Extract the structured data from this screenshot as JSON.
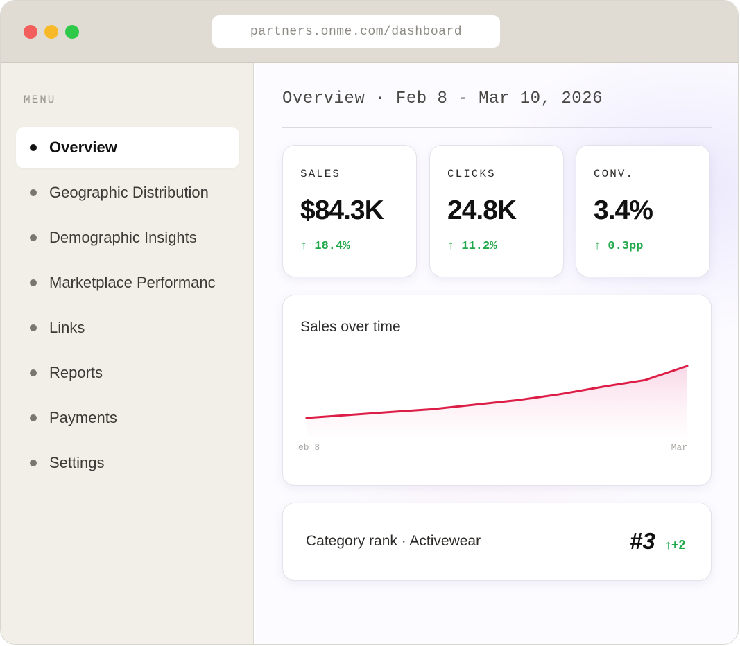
{
  "browser": {
    "url": "partners.onme.com/dashboard"
  },
  "sidebar": {
    "menu_title": "MENU",
    "items": [
      {
        "label": "Overview",
        "active": true
      },
      {
        "label": "Geographic Distribution",
        "active": false
      },
      {
        "label": "Demographic Insights",
        "active": false
      },
      {
        "label": "Marketplace Performanc",
        "active": false
      },
      {
        "label": "Links",
        "active": false
      },
      {
        "label": "Reports",
        "active": false
      },
      {
        "label": "Payments",
        "active": false
      },
      {
        "label": "Settings",
        "active": false
      }
    ]
  },
  "main": {
    "header": "Overview · Feb 8 - Mar 10, 2026",
    "kpis": [
      {
        "label": "SALES",
        "value": "$84.3K",
        "delta": "↑ 18.4%"
      },
      {
        "label": "CLICKS",
        "value": "24.8K",
        "delta": "↑ 11.2%"
      },
      {
        "label": "CONV.",
        "value": "3.4%",
        "delta": "↑ 0.3pp"
      }
    ],
    "rank": {
      "label": "Category rank · Activewear",
      "value": "#3",
      "delta": "↑+2"
    }
  },
  "colors": {
    "accent_line": "#dc1e47",
    "positive": "#20a84a"
  },
  "chart_data": {
    "type": "area",
    "title": "Sales over time",
    "x_tick_labels": [
      "eb 8",
      "Mar"
    ],
    "y_normalized": [
      0.0,
      0.057,
      0.114,
      0.171,
      0.257,
      0.343,
      0.457,
      0.6,
      0.729,
      1.0
    ],
    "grid": false,
    "legend": "none"
  }
}
